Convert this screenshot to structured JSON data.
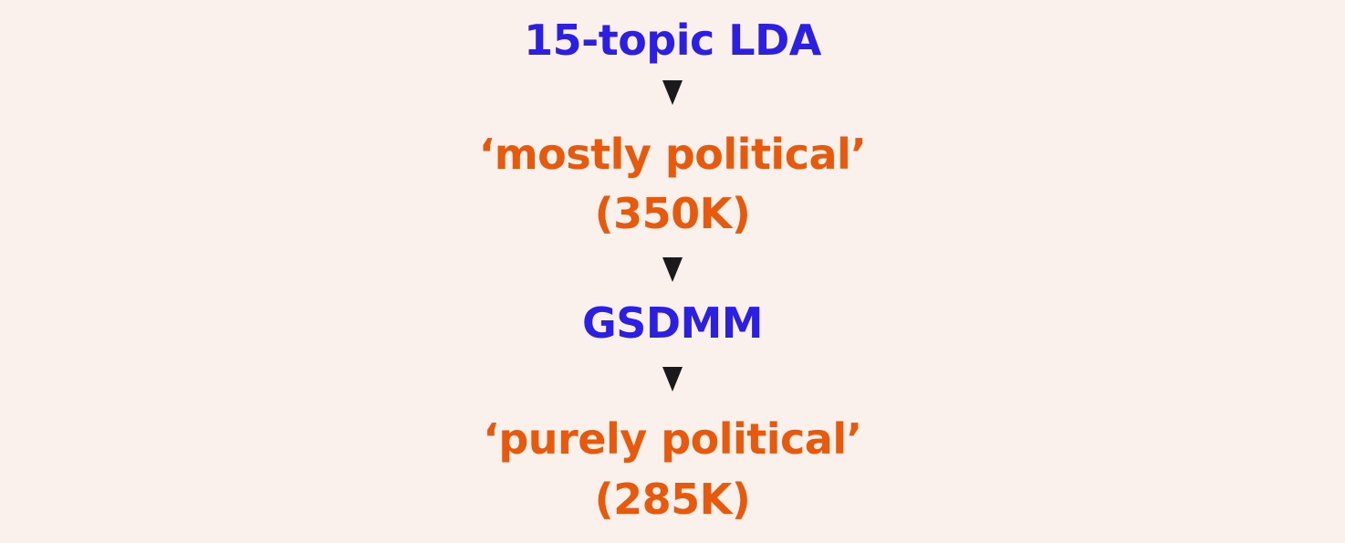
{
  "colors": {
    "background": "#FBF1EC",
    "method": "#2B1FE6",
    "result": "#E8590C",
    "arrow": "#1A1A1A"
  },
  "pipeline": {
    "step1": {
      "label": "15-topic LDA"
    },
    "result1": {
      "label": "‘mostly political’",
      "count": "(350K)"
    },
    "step2": {
      "label": "GSDMM"
    },
    "result2": {
      "label": "‘purely political’",
      "count": "(285K)"
    }
  },
  "icons": {
    "arrow": "down-triangle-icon"
  }
}
